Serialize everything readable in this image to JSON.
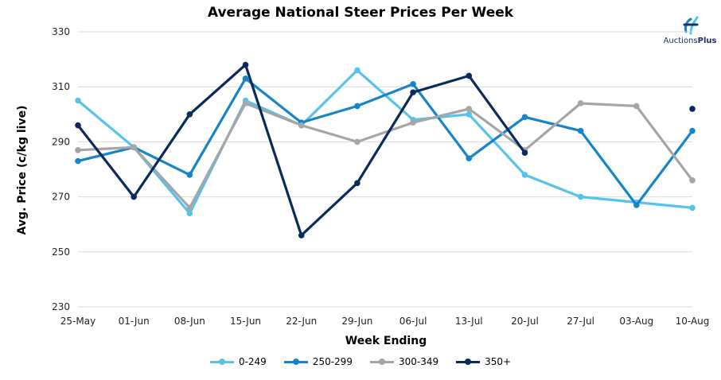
{
  "chart_data": {
    "type": "line",
    "title": "Average National Steer Prices Per Week",
    "xlabel": "Week Ending",
    "ylabel": "Avg. Price (c/kg live)",
    "ylim": [
      230,
      330
    ],
    "yticks": [
      230,
      250,
      270,
      290,
      310,
      330
    ],
    "categories": [
      "25-May",
      "01-Jun",
      "08-Jun",
      "15-Jun",
      "22-Jun",
      "29-Jun",
      "06-Jul",
      "13-Jul",
      "20-Jul",
      "27-Jul",
      "03-Aug",
      "10-Aug"
    ],
    "grid": "horizontal",
    "legend_position": "bottom",
    "series": [
      {
        "name": "0-249",
        "color": "#56c3ec",
        "values": [
          305,
          288,
          264,
          305,
          296,
          316,
          298,
          300,
          278,
          270,
          268,
          266
        ]
      },
      {
        "name": "250-299",
        "color": "#1585c8",
        "values": [
          283,
          288,
          278,
          313,
          297,
          303,
          311,
          284,
          299,
          294,
          267,
          294
        ]
      },
      {
        "name": "300-349",
        "color": "#a6a6a6",
        "values": [
          287,
          288,
          266,
          304,
          296,
          290,
          297,
          302,
          287,
          304,
          303,
          276
        ]
      },
      {
        "name": "350+",
        "color": "#0b2a5b",
        "values": [
          296,
          270,
          300,
          318,
          256,
          275,
          308,
          314,
          286,
          null,
          null,
          302
        ]
      }
    ]
  },
  "logo": {
    "brand_regular": "Auctions",
    "brand_bold": "Plus",
    "icon": "auctionsplus-logo-icon"
  }
}
